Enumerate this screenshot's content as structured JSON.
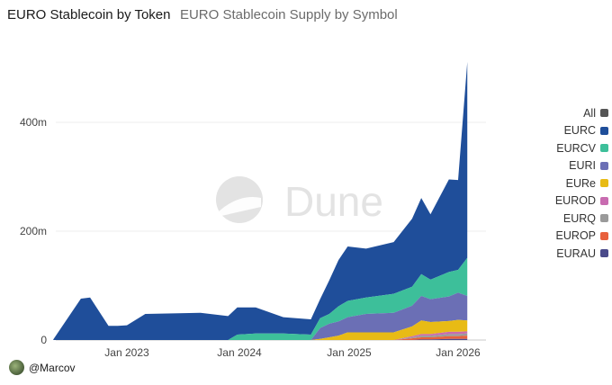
{
  "header": {
    "title": "EURO Stablecoin by Token",
    "subtitle": "EURO Stablecoin Supply by Symbol"
  },
  "watermark": "Dune",
  "footer": {
    "author": "@Marcov",
    "avatar_icon": "user-avatar-icon"
  },
  "chart_data": {
    "type": "area",
    "stacked": true,
    "title": "EURO Stablecoin Supply by Symbol",
    "x_ticks": [
      "Jan 2023",
      "Jan 2024",
      "Jan 2025",
      "Jan 2026"
    ],
    "y_ticks": [
      "0",
      "200m",
      "400m"
    ],
    "y_tick_values": [
      0,
      200,
      400
    ],
    "y_unit": "m",
    "ylim": [
      0,
      540
    ],
    "grid": true,
    "legend_position": "right",
    "x": [
      "2022-05",
      "2022-08",
      "2022-09",
      "2022-11",
      "2022-12",
      "2023-01",
      "2023-03",
      "2023-06",
      "2023-09",
      "2023-12",
      "2024-01",
      "2024-03",
      "2024-06",
      "2024-09",
      "2024-10",
      "2024-11",
      "2024-12",
      "2025-01",
      "2025-03",
      "2025-06",
      "2025-08",
      "2025-09",
      "2025-10",
      "2025-12",
      "2026-01",
      "2026-02"
    ],
    "series": [
      {
        "name": "All",
        "color": "#555555",
        "values": [
          0,
          0,
          0,
          0,
          0,
          0,
          0,
          0,
          0,
          0,
          0,
          0,
          0,
          0,
          0,
          0,
          0,
          0,
          0,
          0,
          0,
          0,
          0,
          0,
          0,
          0
        ]
      },
      {
        "name": "EURC",
        "color": "#1f4e9a",
        "values": [
          1,
          76,
          78,
          26,
          26,
          27,
          48,
          49,
          50,
          44,
          50,
          48,
          30,
          28,
          35,
          62,
          85,
          100,
          90,
          95,
          125,
          140,
          120,
          170,
          165,
          360
        ]
      },
      {
        "name": "EURCV",
        "color": "#3dbf9a",
        "values": [
          0,
          0,
          0,
          0,
          0,
          0,
          0,
          0,
          0,
          0,
          10,
          12,
          12,
          10,
          18,
          18,
          28,
          30,
          30,
          35,
          35,
          40,
          36,
          45,
          42,
          70
        ]
      },
      {
        "name": "EURI",
        "color": "#6b6fb5",
        "values": [
          0,
          0,
          0,
          0,
          0,
          0,
          0,
          0,
          0,
          0,
          0,
          0,
          0,
          0,
          20,
          25,
          26,
          28,
          34,
          36,
          38,
          45,
          42,
          45,
          50,
          45
        ]
      },
      {
        "name": "EURe",
        "color": "#e8bb15",
        "values": [
          0,
          0,
          0,
          0,
          0,
          0,
          0,
          0,
          0,
          0,
          0,
          0,
          0,
          0,
          2,
          5,
          8,
          14,
          14,
          14,
          18,
          25,
          22,
          20,
          22,
          20
        ]
      },
      {
        "name": "EUROD",
        "color": "#c86bb0",
        "values": [
          0,
          0,
          0,
          0,
          0,
          0,
          0,
          0,
          0,
          0,
          0,
          0,
          0,
          0,
          0,
          0,
          0,
          0,
          0,
          0,
          2,
          3,
          3,
          4,
          4,
          4
        ]
      },
      {
        "name": "EURQ",
        "color": "#9a9a9a",
        "values": [
          0,
          0,
          0,
          0,
          0,
          0,
          0,
          0,
          0,
          0,
          0,
          0,
          0,
          0,
          0,
          0,
          0,
          0,
          0,
          0,
          2,
          3,
          3,
          4,
          4,
          4
        ]
      },
      {
        "name": "EUROP",
        "color": "#e8603c",
        "values": [
          0,
          0,
          0,
          0,
          0,
          0,
          0,
          0,
          0,
          0,
          0,
          0,
          0,
          0,
          0,
          0,
          0,
          0,
          0,
          0,
          3,
          4,
          4,
          5,
          5,
          6
        ]
      },
      {
        "name": "EURAU",
        "color": "#4a4a8a",
        "values": [
          0,
          0,
          0,
          0,
          0,
          0,
          0,
          0,
          0,
          0,
          0,
          0,
          0,
          0,
          0,
          0,
          0,
          0,
          0,
          0,
          0,
          1,
          1,
          2,
          2,
          2
        ]
      }
    ]
  }
}
